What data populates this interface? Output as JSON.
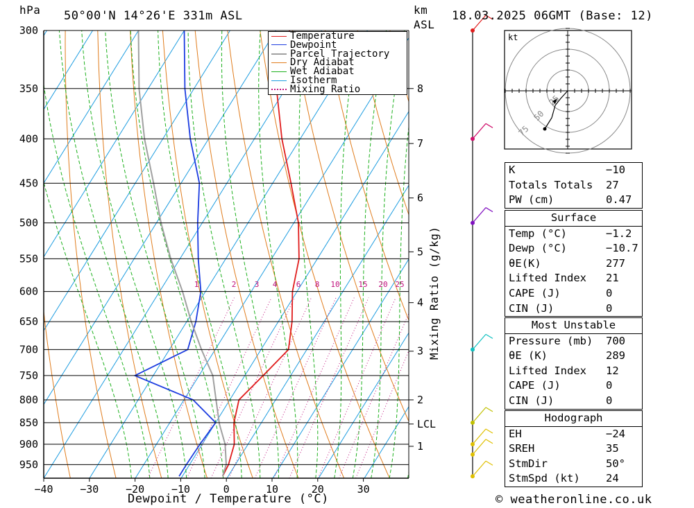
{
  "header": {
    "pressure_unit": "hPa",
    "location": "50°00'N 14°26'E 331m ASL",
    "km_unit": "km",
    "asl": "ASL",
    "datetime": "18.03.2025 06GMT (Base: 12)"
  },
  "footer": {
    "xlabel": "Dewpoint / Temperature (°C)",
    "watermark": "© weatheronline.co.uk",
    "mixing_ratio_label": "Mixing Ratio (g/kg)"
  },
  "chart_data": {
    "type": "line",
    "title": "50°00'N 14°26'E 331m ASL",
    "xlabel": "Dewpoint / Temperature (°C)",
    "ylabel": "hPa",
    "pressure_levels": [
      300,
      350,
      400,
      450,
      500,
      550,
      600,
      650,
      700,
      750,
      800,
      850,
      900,
      950
    ],
    "temperature_ticks": [
      -40,
      -30,
      -20,
      -10,
      0,
      10,
      20,
      30
    ],
    "km_ticks": [
      {
        "label": "8",
        "p": 350
      },
      {
        "label": "7",
        "p": 405
      },
      {
        "label": "6",
        "p": 468
      },
      {
        "label": "5",
        "p": 540
      },
      {
        "label": "4",
        "p": 618
      },
      {
        "label": "3",
        "p": 703
      },
      {
        "label": "2",
        "p": 800
      },
      {
        "label": "LCL",
        "p": 853
      },
      {
        "label": "1",
        "p": 905
      }
    ],
    "mixing_ratio_values": [
      "1",
      "2",
      "3",
      "4",
      "6",
      "8",
      "10",
      "15",
      "20",
      "25"
    ],
    "legend": [
      "Temperature",
      "Dewpoint",
      "Parcel Trajectory",
      "Dry Adiabat",
      "Wet Adiabat",
      "Isotherm",
      "Mixing Ratio"
    ],
    "legend_position": "top-right",
    "series": [
      {
        "name": "Temperature",
        "color": "#e01c1c",
        "points": [
          [
            300,
            -47
          ],
          [
            350,
            -42
          ],
          [
            400,
            -34
          ],
          [
            450,
            -26
          ],
          [
            500,
            -19
          ],
          [
            550,
            -14
          ],
          [
            600,
            -11
          ],
          [
            650,
            -7
          ],
          [
            700,
            -4
          ],
          [
            750,
            -6
          ],
          [
            800,
            -8
          ],
          [
            850,
            -6
          ],
          [
            900,
            -3
          ],
          [
            950,
            -1.5
          ],
          [
            980,
            -1.2
          ]
        ]
      },
      {
        "name": "Dewpoint",
        "color": "#1c3ce0",
        "points": [
          [
            300,
            -70
          ],
          [
            350,
            -62
          ],
          [
            400,
            -54
          ],
          [
            450,
            -46
          ],
          [
            500,
            -41
          ],
          [
            550,
            -36
          ],
          [
            600,
            -31
          ],
          [
            650,
            -28
          ],
          [
            700,
            -26
          ],
          [
            750,
            -34
          ],
          [
            800,
            -18
          ],
          [
            850,
            -10
          ],
          [
            900,
            -10.5
          ],
          [
            950,
            -10.7
          ],
          [
            980,
            -10.7
          ]
        ]
      },
      {
        "name": "Parcel Trajectory",
        "color": "#a0a0a0",
        "points": [
          [
            300,
            -80
          ],
          [
            350,
            -72
          ],
          [
            400,
            -64
          ],
          [
            450,
            -56
          ],
          [
            500,
            -49
          ],
          [
            550,
            -42
          ],
          [
            600,
            -35
          ],
          [
            650,
            -29
          ],
          [
            700,
            -23
          ],
          [
            750,
            -17
          ],
          [
            800,
            -13
          ],
          [
            853,
            -9
          ],
          [
            900,
            -5
          ],
          [
            950,
            -2
          ],
          [
            980,
            -1.2
          ]
        ]
      }
    ]
  },
  "hodograph": {
    "unit": "kt",
    "ring_labels": [
      "25",
      "50",
      "75"
    ]
  },
  "indices": {
    "block1": [
      {
        "k": "K",
        "v": "-10"
      },
      {
        "k": "Totals Totals",
        "v": "27"
      },
      {
        "k": "PW (cm)",
        "v": "0.47"
      }
    ],
    "surface": {
      "title": "Surface",
      "rows": [
        {
          "k": "Temp (°C)",
          "v": "-1.2"
        },
        {
          "k": "Dewp (°C)",
          "v": "-10.7"
        },
        {
          "k": "θE(K)",
          "v": "277"
        },
        {
          "k": "Lifted Index",
          "v": "21"
        },
        {
          "k": "CAPE (J)",
          "v": "0"
        },
        {
          "k": "CIN (J)",
          "v": "0"
        }
      ]
    },
    "most_unstable": {
      "title": "Most Unstable",
      "rows": [
        {
          "k": "Pressure (mb)",
          "v": "700"
        },
        {
          "k": "θE (K)",
          "v": "289"
        },
        {
          "k": "Lifted Index",
          "v": "12"
        },
        {
          "k": "CAPE (J)",
          "v": "0"
        },
        {
          "k": "CIN (J)",
          "v": "0"
        }
      ]
    },
    "hodograph": {
      "title": "Hodograph",
      "rows": [
        {
          "k": "EH",
          "v": "-24"
        },
        {
          "k": "SREH",
          "v": "35"
        },
        {
          "k": "StmDir",
          "v": "50°"
        },
        {
          "k": "StmSpd (kt)",
          "v": "24"
        }
      ]
    }
  },
  "colors": {
    "temperature": "#e01c1c",
    "dewpoint": "#1c3ce0",
    "parcel": "#a0a0a0",
    "dry_adiabat": "#e07c1c",
    "wet_adiabat": "#1cb01c",
    "isotherm": "#1c9ce0",
    "mixing_ratio": "#c0107c"
  }
}
